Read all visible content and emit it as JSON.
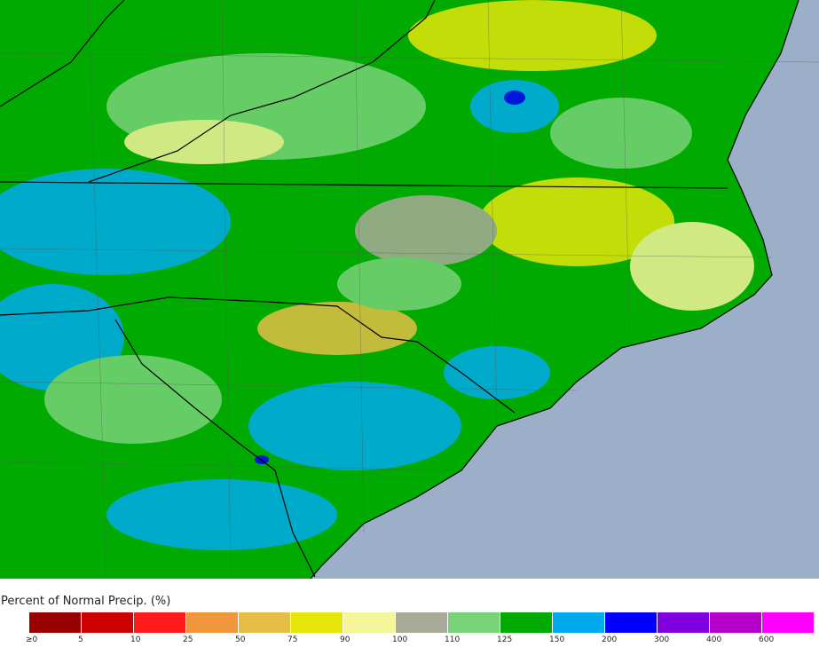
{
  "legend": {
    "title": "Percent of Normal Precip. (%)",
    "bins": [
      {
        "label": "≥0",
        "color": "#990000"
      },
      {
        "label": "5",
        "color": "#cc0000"
      },
      {
        "label": "10",
        "color": "#ff1a1a"
      },
      {
        "label": "25",
        "color": "#f0963c"
      },
      {
        "label": "50",
        "color": "#e6be46"
      },
      {
        "label": "75",
        "color": "#e6e60a"
      },
      {
        "label": "90",
        "color": "#f5f59a"
      },
      {
        "label": "100",
        "color": "#aaaa98"
      },
      {
        "label": "110",
        "color": "#78d278"
      },
      {
        "label": "125",
        "color": "#00aa00"
      },
      {
        "label": "150",
        "color": "#00aaee"
      },
      {
        "label": "200",
        "color": "#0000ff"
      },
      {
        "label": "300",
        "color": "#8000e0"
      },
      {
        "label": "400",
        "color": "#b400c8"
      },
      {
        "label": "600",
        "color": "#ff00ff"
      }
    ]
  }
}
